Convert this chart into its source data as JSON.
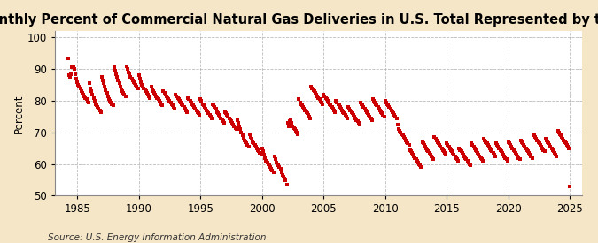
{
  "title": "Monthly Percent of Commercial Natural Gas Deliveries in U.S. Total Represented by the Price",
  "ylabel": "Percent",
  "source": "Source: U.S. Energy Information Administration",
  "xlim": [
    1983.2,
    2026.0
  ],
  "ylim": [
    50,
    102
  ],
  "yticks": [
    50,
    60,
    70,
    80,
    90,
    100
  ],
  "xticks": [
    1985,
    1990,
    1995,
    2000,
    2005,
    2010,
    2015,
    2020,
    2025
  ],
  "marker_color": "#CC0000",
  "bg_color": "#F5E6C8",
  "plot_bg_color": "#FFFFFF",
  "title_fontsize": 10.5,
  "label_fontsize": 8.5,
  "source_fontsize": 7.5,
  "data": [
    [
      1984.25,
      93.5
    ],
    [
      1984.33,
      88.0
    ],
    [
      1984.42,
      87.5
    ],
    [
      1984.5,
      88.5
    ],
    [
      1984.58,
      90.5
    ],
    [
      1984.67,
      91.0
    ],
    [
      1984.75,
      90.0
    ],
    [
      1984.83,
      88.5
    ],
    [
      1984.92,
      87.0
    ],
    [
      1985.0,
      86.0
    ],
    [
      1985.08,
      85.0
    ],
    [
      1985.17,
      84.5
    ],
    [
      1985.25,
      84.0
    ],
    [
      1985.33,
      83.0
    ],
    [
      1985.42,
      82.5
    ],
    [
      1985.5,
      82.0
    ],
    [
      1985.58,
      81.5
    ],
    [
      1985.67,
      81.0
    ],
    [
      1985.75,
      80.5
    ],
    [
      1985.83,
      80.0
    ],
    [
      1985.92,
      79.5
    ],
    [
      1986.0,
      85.5
    ],
    [
      1986.08,
      84.0
    ],
    [
      1986.17,
      83.0
    ],
    [
      1986.25,
      82.0
    ],
    [
      1986.33,
      81.0
    ],
    [
      1986.42,
      80.0
    ],
    [
      1986.5,
      79.0
    ],
    [
      1986.58,
      78.5
    ],
    [
      1986.67,
      78.0
    ],
    [
      1986.75,
      77.5
    ],
    [
      1986.83,
      77.0
    ],
    [
      1986.92,
      76.5
    ],
    [
      1987.0,
      87.5
    ],
    [
      1987.08,
      86.5
    ],
    [
      1987.17,
      85.5
    ],
    [
      1987.25,
      84.5
    ],
    [
      1987.33,
      83.5
    ],
    [
      1987.42,
      82.5
    ],
    [
      1987.5,
      81.5
    ],
    [
      1987.58,
      80.5
    ],
    [
      1987.67,
      80.0
    ],
    [
      1987.75,
      79.5
    ],
    [
      1987.83,
      79.0
    ],
    [
      1987.92,
      78.5
    ],
    [
      1988.0,
      90.5
    ],
    [
      1988.08,
      89.5
    ],
    [
      1988.17,
      88.5
    ],
    [
      1988.25,
      87.5
    ],
    [
      1988.33,
      86.5
    ],
    [
      1988.42,
      85.5
    ],
    [
      1988.5,
      84.5
    ],
    [
      1988.58,
      83.5
    ],
    [
      1988.67,
      83.0
    ],
    [
      1988.75,
      82.5
    ],
    [
      1988.83,
      82.0
    ],
    [
      1988.92,
      81.5
    ],
    [
      1989.0,
      91.0
    ],
    [
      1989.08,
      90.0
    ],
    [
      1989.17,
      89.0
    ],
    [
      1989.25,
      88.5
    ],
    [
      1989.33,
      87.5
    ],
    [
      1989.42,
      87.0
    ],
    [
      1989.5,
      86.5
    ],
    [
      1989.58,
      86.0
    ],
    [
      1989.67,
      85.5
    ],
    [
      1989.75,
      85.0
    ],
    [
      1989.83,
      84.5
    ],
    [
      1989.92,
      84.0
    ],
    [
      1990.0,
      88.0
    ],
    [
      1990.08,
      87.0
    ],
    [
      1990.17,
      86.0
    ],
    [
      1990.25,
      85.0
    ],
    [
      1990.33,
      84.5
    ],
    [
      1990.42,
      84.0
    ],
    [
      1990.5,
      83.5
    ],
    [
      1990.58,
      83.0
    ],
    [
      1990.67,
      82.5
    ],
    [
      1990.75,
      82.0
    ],
    [
      1990.83,
      81.5
    ],
    [
      1990.92,
      81.0
    ],
    [
      1991.0,
      84.5
    ],
    [
      1991.08,
      83.5
    ],
    [
      1991.17,
      83.0
    ],
    [
      1991.25,
      82.5
    ],
    [
      1991.33,
      82.0
    ],
    [
      1991.42,
      81.5
    ],
    [
      1991.5,
      81.0
    ],
    [
      1991.58,
      80.5
    ],
    [
      1991.67,
      80.0
    ],
    [
      1991.75,
      79.5
    ],
    [
      1991.83,
      79.0
    ],
    [
      1991.92,
      78.5
    ],
    [
      1992.0,
      83.0
    ],
    [
      1992.08,
      82.5
    ],
    [
      1992.17,
      82.0
    ],
    [
      1992.25,
      81.5
    ],
    [
      1992.33,
      81.0
    ],
    [
      1992.42,
      80.5
    ],
    [
      1992.5,
      80.0
    ],
    [
      1992.58,
      79.5
    ],
    [
      1992.67,
      79.0
    ],
    [
      1992.75,
      78.5
    ],
    [
      1992.83,
      78.0
    ],
    [
      1992.92,
      77.5
    ],
    [
      1993.0,
      82.0
    ],
    [
      1993.08,
      81.5
    ],
    [
      1993.17,
      81.0
    ],
    [
      1993.25,
      80.5
    ],
    [
      1993.33,
      80.0
    ],
    [
      1993.42,
      79.5
    ],
    [
      1993.5,
      79.0
    ],
    [
      1993.58,
      78.5
    ],
    [
      1993.67,
      78.0
    ],
    [
      1993.75,
      77.5
    ],
    [
      1993.83,
      77.0
    ],
    [
      1993.92,
      76.5
    ],
    [
      1994.0,
      81.0
    ],
    [
      1994.08,
      80.5
    ],
    [
      1994.17,
      80.0
    ],
    [
      1994.25,
      79.5
    ],
    [
      1994.33,
      79.0
    ],
    [
      1994.42,
      78.5
    ],
    [
      1994.5,
      78.0
    ],
    [
      1994.58,
      77.5
    ],
    [
      1994.67,
      77.0
    ],
    [
      1994.75,
      76.5
    ],
    [
      1994.83,
      76.0
    ],
    [
      1994.92,
      75.5
    ],
    [
      1995.0,
      80.5
    ],
    [
      1995.08,
      80.0
    ],
    [
      1995.17,
      79.0
    ],
    [
      1995.25,
      78.5
    ],
    [
      1995.33,
      78.0
    ],
    [
      1995.42,
      77.5
    ],
    [
      1995.5,
      77.0
    ],
    [
      1995.58,
      76.5
    ],
    [
      1995.67,
      76.0
    ],
    [
      1995.75,
      75.5
    ],
    [
      1995.83,
      75.0
    ],
    [
      1995.92,
      74.5
    ],
    [
      1996.0,
      79.0
    ],
    [
      1996.08,
      78.5
    ],
    [
      1996.17,
      78.0
    ],
    [
      1996.25,
      77.5
    ],
    [
      1996.33,
      76.5
    ],
    [
      1996.42,
      76.0
    ],
    [
      1996.5,
      75.5
    ],
    [
      1996.58,
      75.0
    ],
    [
      1996.67,
      74.5
    ],
    [
      1996.75,
      74.0
    ],
    [
      1996.83,
      73.5
    ],
    [
      1996.92,
      73.0
    ],
    [
      1997.0,
      76.5
    ],
    [
      1997.08,
      76.0
    ],
    [
      1997.17,
      75.5
    ],
    [
      1997.25,
      75.0
    ],
    [
      1997.33,
      74.5
    ],
    [
      1997.42,
      74.0
    ],
    [
      1997.5,
      73.5
    ],
    [
      1997.58,
      73.0
    ],
    [
      1997.67,
      72.5
    ],
    [
      1997.75,
      72.0
    ],
    [
      1997.83,
      71.5
    ],
    [
      1997.92,
      71.0
    ],
    [
      1998.0,
      74.0
    ],
    [
      1998.08,
      73.0
    ],
    [
      1998.17,
      72.0
    ],
    [
      1998.25,
      71.0
    ],
    [
      1998.33,
      70.0
    ],
    [
      1998.42,
      69.0
    ],
    [
      1998.5,
      68.0
    ],
    [
      1998.58,
      67.5
    ],
    [
      1998.67,
      67.0
    ],
    [
      1998.75,
      66.5
    ],
    [
      1998.83,
      66.0
    ],
    [
      1998.92,
      65.5
    ],
    [
      1999.0,
      69.5
    ],
    [
      1999.08,
      68.5
    ],
    [
      1999.17,
      68.0
    ],
    [
      1999.25,
      67.0
    ],
    [
      1999.33,
      66.5
    ],
    [
      1999.42,
      66.0
    ],
    [
      1999.5,
      65.5
    ],
    [
      1999.58,
      65.0
    ],
    [
      1999.67,
      64.5
    ],
    [
      1999.75,
      64.0
    ],
    [
      1999.83,
      63.5
    ],
    [
      1999.92,
      63.0
    ],
    [
      2000.0,
      65.0
    ],
    [
      2000.08,
      64.0
    ],
    [
      2000.17,
      63.0
    ],
    [
      2000.25,
      62.0
    ],
    [
      2000.33,
      61.0
    ],
    [
      2000.42,
      60.5
    ],
    [
      2000.5,
      60.0
    ],
    [
      2000.58,
      59.5
    ],
    [
      2000.67,
      59.0
    ],
    [
      2000.75,
      58.5
    ],
    [
      2000.83,
      58.0
    ],
    [
      2000.92,
      57.5
    ],
    [
      2001.0,
      62.5
    ],
    [
      2001.08,
      61.5
    ],
    [
      2001.17,
      60.5
    ],
    [
      2001.25,
      60.0
    ],
    [
      2001.33,
      59.5
    ],
    [
      2001.42,
      59.0
    ],
    [
      2001.5,
      58.5
    ],
    [
      2001.58,
      57.5
    ],
    [
      2001.67,
      56.5
    ],
    [
      2001.75,
      56.0
    ],
    [
      2001.83,
      55.5
    ],
    [
      2001.92,
      55.0
    ],
    [
      2002.0,
      53.5
    ],
    [
      2002.08,
      73.0
    ],
    [
      2002.17,
      72.0
    ],
    [
      2002.25,
      73.5
    ],
    [
      2002.33,
      74.0
    ],
    [
      2002.42,
      73.0
    ],
    [
      2002.5,
      72.0
    ],
    [
      2002.58,
      71.5
    ],
    [
      2002.67,
      71.0
    ],
    [
      2002.75,
      70.5
    ],
    [
      2002.83,
      70.0
    ],
    [
      2002.92,
      69.5
    ],
    [
      2003.0,
      80.5
    ],
    [
      2003.08,
      79.5
    ],
    [
      2003.17,
      79.0
    ],
    [
      2003.25,
      78.5
    ],
    [
      2003.33,
      78.0
    ],
    [
      2003.42,
      77.5
    ],
    [
      2003.5,
      77.0
    ],
    [
      2003.58,
      76.5
    ],
    [
      2003.67,
      76.0
    ],
    [
      2003.75,
      75.5
    ],
    [
      2003.83,
      75.0
    ],
    [
      2003.92,
      74.5
    ],
    [
      2004.0,
      84.5
    ],
    [
      2004.08,
      84.0
    ],
    [
      2004.17,
      83.5
    ],
    [
      2004.25,
      83.0
    ],
    [
      2004.33,
      82.5
    ],
    [
      2004.42,
      82.0
    ],
    [
      2004.5,
      81.5
    ],
    [
      2004.58,
      81.0
    ],
    [
      2004.67,
      80.5
    ],
    [
      2004.75,
      80.0
    ],
    [
      2004.83,
      79.5
    ],
    [
      2004.92,
      79.0
    ],
    [
      2005.0,
      82.0
    ],
    [
      2005.08,
      81.5
    ],
    [
      2005.17,
      81.0
    ],
    [
      2005.25,
      80.5
    ],
    [
      2005.33,
      80.0
    ],
    [
      2005.42,
      79.5
    ],
    [
      2005.5,
      79.0
    ],
    [
      2005.58,
      78.5
    ],
    [
      2005.67,
      78.0
    ],
    [
      2005.75,
      77.5
    ],
    [
      2005.83,
      77.0
    ],
    [
      2005.92,
      76.5
    ],
    [
      2006.0,
      80.0
    ],
    [
      2006.08,
      79.5
    ],
    [
      2006.17,
      79.0
    ],
    [
      2006.25,
      78.5
    ],
    [
      2006.33,
      78.0
    ],
    [
      2006.42,
      77.5
    ],
    [
      2006.5,
      77.0
    ],
    [
      2006.58,
      76.5
    ],
    [
      2006.67,
      76.0
    ],
    [
      2006.75,
      75.5
    ],
    [
      2006.83,
      75.0
    ],
    [
      2006.92,
      74.5
    ],
    [
      2007.0,
      78.0
    ],
    [
      2007.08,
      77.5
    ],
    [
      2007.17,
      77.0
    ],
    [
      2007.25,
      76.5
    ],
    [
      2007.33,
      76.0
    ],
    [
      2007.42,
      75.5
    ],
    [
      2007.5,
      75.0
    ],
    [
      2007.58,
      74.5
    ],
    [
      2007.67,
      74.0
    ],
    [
      2007.75,
      73.5
    ],
    [
      2007.83,
      73.0
    ],
    [
      2007.92,
      72.5
    ],
    [
      2008.0,
      79.5
    ],
    [
      2008.08,
      79.0
    ],
    [
      2008.17,
      78.5
    ],
    [
      2008.25,
      78.0
    ],
    [
      2008.33,
      77.5
    ],
    [
      2008.42,
      77.0
    ],
    [
      2008.5,
      76.5
    ],
    [
      2008.58,
      76.0
    ],
    [
      2008.67,
      75.5
    ],
    [
      2008.75,
      75.0
    ],
    [
      2008.83,
      74.5
    ],
    [
      2008.92,
      74.0
    ],
    [
      2009.0,
      80.5
    ],
    [
      2009.08,
      80.0
    ],
    [
      2009.17,
      79.5
    ],
    [
      2009.25,
      79.0
    ],
    [
      2009.33,
      78.5
    ],
    [
      2009.42,
      78.0
    ],
    [
      2009.5,
      77.5
    ],
    [
      2009.58,
      77.0
    ],
    [
      2009.67,
      76.5
    ],
    [
      2009.75,
      76.0
    ],
    [
      2009.83,
      75.5
    ],
    [
      2009.92,
      75.0
    ],
    [
      2010.0,
      80.0
    ],
    [
      2010.08,
      79.5
    ],
    [
      2010.17,
      79.0
    ],
    [
      2010.25,
      78.5
    ],
    [
      2010.33,
      78.0
    ],
    [
      2010.42,
      77.5
    ],
    [
      2010.5,
      77.0
    ],
    [
      2010.58,
      76.5
    ],
    [
      2010.67,
      76.0
    ],
    [
      2010.75,
      75.5
    ],
    [
      2010.83,
      75.0
    ],
    [
      2010.92,
      74.5
    ],
    [
      2011.0,
      72.5
    ],
    [
      2011.08,
      71.0
    ],
    [
      2011.17,
      70.5
    ],
    [
      2011.25,
      70.0
    ],
    [
      2011.33,
      69.5
    ],
    [
      2011.42,
      69.0
    ],
    [
      2011.5,
      68.5
    ],
    [
      2011.58,
      68.0
    ],
    [
      2011.67,
      67.5
    ],
    [
      2011.75,
      67.0
    ],
    [
      2011.83,
      66.5
    ],
    [
      2011.92,
      66.0
    ],
    [
      2012.0,
      64.5
    ],
    [
      2012.08,
      64.0
    ],
    [
      2012.17,
      63.5
    ],
    [
      2012.25,
      63.0
    ],
    [
      2012.33,
      62.5
    ],
    [
      2012.42,
      62.0
    ],
    [
      2012.5,
      61.5
    ],
    [
      2012.58,
      61.0
    ],
    [
      2012.67,
      60.5
    ],
    [
      2012.75,
      60.0
    ],
    [
      2012.83,
      59.5
    ],
    [
      2012.92,
      59.0
    ],
    [
      2013.0,
      67.0
    ],
    [
      2013.08,
      66.5
    ],
    [
      2013.17,
      66.0
    ],
    [
      2013.25,
      65.5
    ],
    [
      2013.33,
      65.0
    ],
    [
      2013.42,
      64.5
    ],
    [
      2013.5,
      64.0
    ],
    [
      2013.58,
      63.5
    ],
    [
      2013.67,
      63.0
    ],
    [
      2013.75,
      62.5
    ],
    [
      2013.83,
      62.0
    ],
    [
      2013.92,
      61.5
    ],
    [
      2014.0,
      68.5
    ],
    [
      2014.08,
      68.0
    ],
    [
      2014.17,
      67.5
    ],
    [
      2014.25,
      67.0
    ],
    [
      2014.33,
      66.5
    ],
    [
      2014.42,
      66.0
    ],
    [
      2014.5,
      65.5
    ],
    [
      2014.58,
      65.0
    ],
    [
      2014.67,
      64.5
    ],
    [
      2014.75,
      64.0
    ],
    [
      2014.83,
      63.5
    ],
    [
      2014.92,
      63.0
    ],
    [
      2015.0,
      66.5
    ],
    [
      2015.08,
      66.0
    ],
    [
      2015.17,
      65.5
    ],
    [
      2015.25,
      65.0
    ],
    [
      2015.33,
      64.5
    ],
    [
      2015.42,
      64.0
    ],
    [
      2015.5,
      63.5
    ],
    [
      2015.58,
      63.0
    ],
    [
      2015.67,
      62.5
    ],
    [
      2015.75,
      62.0
    ],
    [
      2015.83,
      61.5
    ],
    [
      2015.92,
      61.0
    ],
    [
      2016.0,
      65.0
    ],
    [
      2016.08,
      64.5
    ],
    [
      2016.17,
      64.0
    ],
    [
      2016.25,
      63.5
    ],
    [
      2016.33,
      63.0
    ],
    [
      2016.42,
      62.5
    ],
    [
      2016.5,
      62.0
    ],
    [
      2016.58,
      61.5
    ],
    [
      2016.67,
      61.0
    ],
    [
      2016.75,
      60.5
    ],
    [
      2016.83,
      60.0
    ],
    [
      2016.92,
      59.5
    ],
    [
      2017.0,
      66.5
    ],
    [
      2017.08,
      66.0
    ],
    [
      2017.17,
      65.5
    ],
    [
      2017.25,
      65.0
    ],
    [
      2017.33,
      64.5
    ],
    [
      2017.42,
      64.0
    ],
    [
      2017.5,
      63.5
    ],
    [
      2017.58,
      63.0
    ],
    [
      2017.67,
      62.5
    ],
    [
      2017.75,
      62.0
    ],
    [
      2017.83,
      61.5
    ],
    [
      2017.92,
      61.0
    ],
    [
      2018.0,
      68.0
    ],
    [
      2018.08,
      67.5
    ],
    [
      2018.17,
      67.0
    ],
    [
      2018.25,
      66.5
    ],
    [
      2018.33,
      66.0
    ],
    [
      2018.42,
      65.5
    ],
    [
      2018.5,
      65.0
    ],
    [
      2018.58,
      64.5
    ],
    [
      2018.67,
      64.0
    ],
    [
      2018.75,
      63.5
    ],
    [
      2018.83,
      63.0
    ],
    [
      2018.92,
      62.5
    ],
    [
      2019.0,
      66.5
    ],
    [
      2019.08,
      66.0
    ],
    [
      2019.17,
      65.5
    ],
    [
      2019.25,
      65.0
    ],
    [
      2019.33,
      64.5
    ],
    [
      2019.42,
      64.0
    ],
    [
      2019.5,
      63.5
    ],
    [
      2019.58,
      63.0
    ],
    [
      2019.67,
      62.5
    ],
    [
      2019.75,
      62.0
    ],
    [
      2019.83,
      61.5
    ],
    [
      2019.92,
      61.0
    ],
    [
      2020.0,
      67.0
    ],
    [
      2020.08,
      66.5
    ],
    [
      2020.17,
      66.0
    ],
    [
      2020.25,
      65.5
    ],
    [
      2020.33,
      65.0
    ],
    [
      2020.42,
      64.5
    ],
    [
      2020.5,
      64.0
    ],
    [
      2020.58,
      63.5
    ],
    [
      2020.67,
      63.0
    ],
    [
      2020.75,
      62.5
    ],
    [
      2020.83,
      62.0
    ],
    [
      2020.92,
      61.5
    ],
    [
      2021.0,
      67.5
    ],
    [
      2021.08,
      67.0
    ],
    [
      2021.17,
      66.5
    ],
    [
      2021.25,
      66.0
    ],
    [
      2021.33,
      65.5
    ],
    [
      2021.42,
      65.0
    ],
    [
      2021.5,
      64.5
    ],
    [
      2021.58,
      64.0
    ],
    [
      2021.67,
      63.5
    ],
    [
      2021.75,
      63.0
    ],
    [
      2021.83,
      62.5
    ],
    [
      2021.92,
      62.0
    ],
    [
      2022.0,
      69.5
    ],
    [
      2022.08,
      69.0
    ],
    [
      2022.17,
      68.5
    ],
    [
      2022.25,
      68.0
    ],
    [
      2022.33,
      67.5
    ],
    [
      2022.42,
      67.0
    ],
    [
      2022.5,
      66.5
    ],
    [
      2022.58,
      66.0
    ],
    [
      2022.67,
      65.5
    ],
    [
      2022.75,
      65.0
    ],
    [
      2022.83,
      64.5
    ],
    [
      2022.92,
      64.0
    ],
    [
      2023.0,
      68.0
    ],
    [
      2023.08,
      67.5
    ],
    [
      2023.17,
      67.0
    ],
    [
      2023.25,
      66.5
    ],
    [
      2023.33,
      66.0
    ],
    [
      2023.42,
      65.5
    ],
    [
      2023.5,
      65.0
    ],
    [
      2023.58,
      64.5
    ],
    [
      2023.67,
      64.0
    ],
    [
      2023.75,
      63.5
    ],
    [
      2023.83,
      63.0
    ],
    [
      2023.92,
      62.5
    ],
    [
      2024.0,
      70.5
    ],
    [
      2024.08,
      70.0
    ],
    [
      2024.17,
      69.5
    ],
    [
      2024.25,
      69.0
    ],
    [
      2024.33,
      68.5
    ],
    [
      2024.42,
      68.0
    ],
    [
      2024.5,
      67.5
    ],
    [
      2024.58,
      67.0
    ],
    [
      2024.67,
      66.5
    ],
    [
      2024.75,
      66.0
    ],
    [
      2024.83,
      65.5
    ],
    [
      2024.92,
      65.0
    ],
    [
      2025.0,
      53.0
    ]
  ]
}
